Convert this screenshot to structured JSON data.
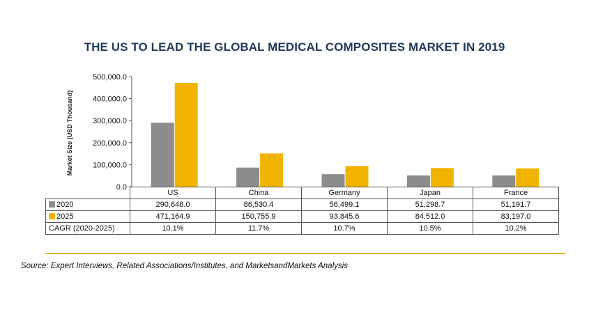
{
  "chart_data": {
    "type": "bar",
    "title": "THE US TO LEAD THE GLOBAL MEDICAL COMPOSITES MARKET IN 2019",
    "xlabel": "",
    "ylabel": "Market Size (USD Thousand)",
    "ylim": [
      0,
      500000
    ],
    "yticks": [
      "0.0",
      "100,000.0",
      "200,000.0",
      "300,000.0",
      "400,000.0",
      "500,000.0"
    ],
    "ytick_values": [
      0,
      100000,
      200000,
      300000,
      400000,
      500000
    ],
    "categories": [
      "US",
      "China",
      "Germany",
      "Japan",
      "France"
    ],
    "series": [
      {
        "name": "2020",
        "color": "#8c8c8c",
        "values": [
          290648.0,
          86530.4,
          56499.1,
          51298.7,
          51191.7
        ],
        "labels": [
          "290,648.0",
          "86,530.4",
          "56,499.1",
          "51,298.7",
          "51,191.7"
        ]
      },
      {
        "name": "2025",
        "color": "#f0b400",
        "values": [
          471164.9,
          150755.9,
          93845.6,
          84512.0,
          83197.0
        ],
        "labels": [
          "471,164.9",
          "150,755.9",
          "93,845.6",
          "84,512.0",
          "83,197.0"
        ]
      }
    ],
    "cagr": {
      "label": "CAGR (2020-2025)",
      "values": [
        "10.1%",
        "11.7%",
        "10.7%",
        "10.5%",
        "10.2%"
      ]
    }
  },
  "source": "Source: Expert Interviews, Related Associations/Institutes, and MarketsandMarkets Analysis",
  "colors": {
    "title": "#1f3a5a",
    "rule": "#e8b400",
    "series_2020": "#8c8c8c",
    "series_2025": "#f0b400"
  }
}
